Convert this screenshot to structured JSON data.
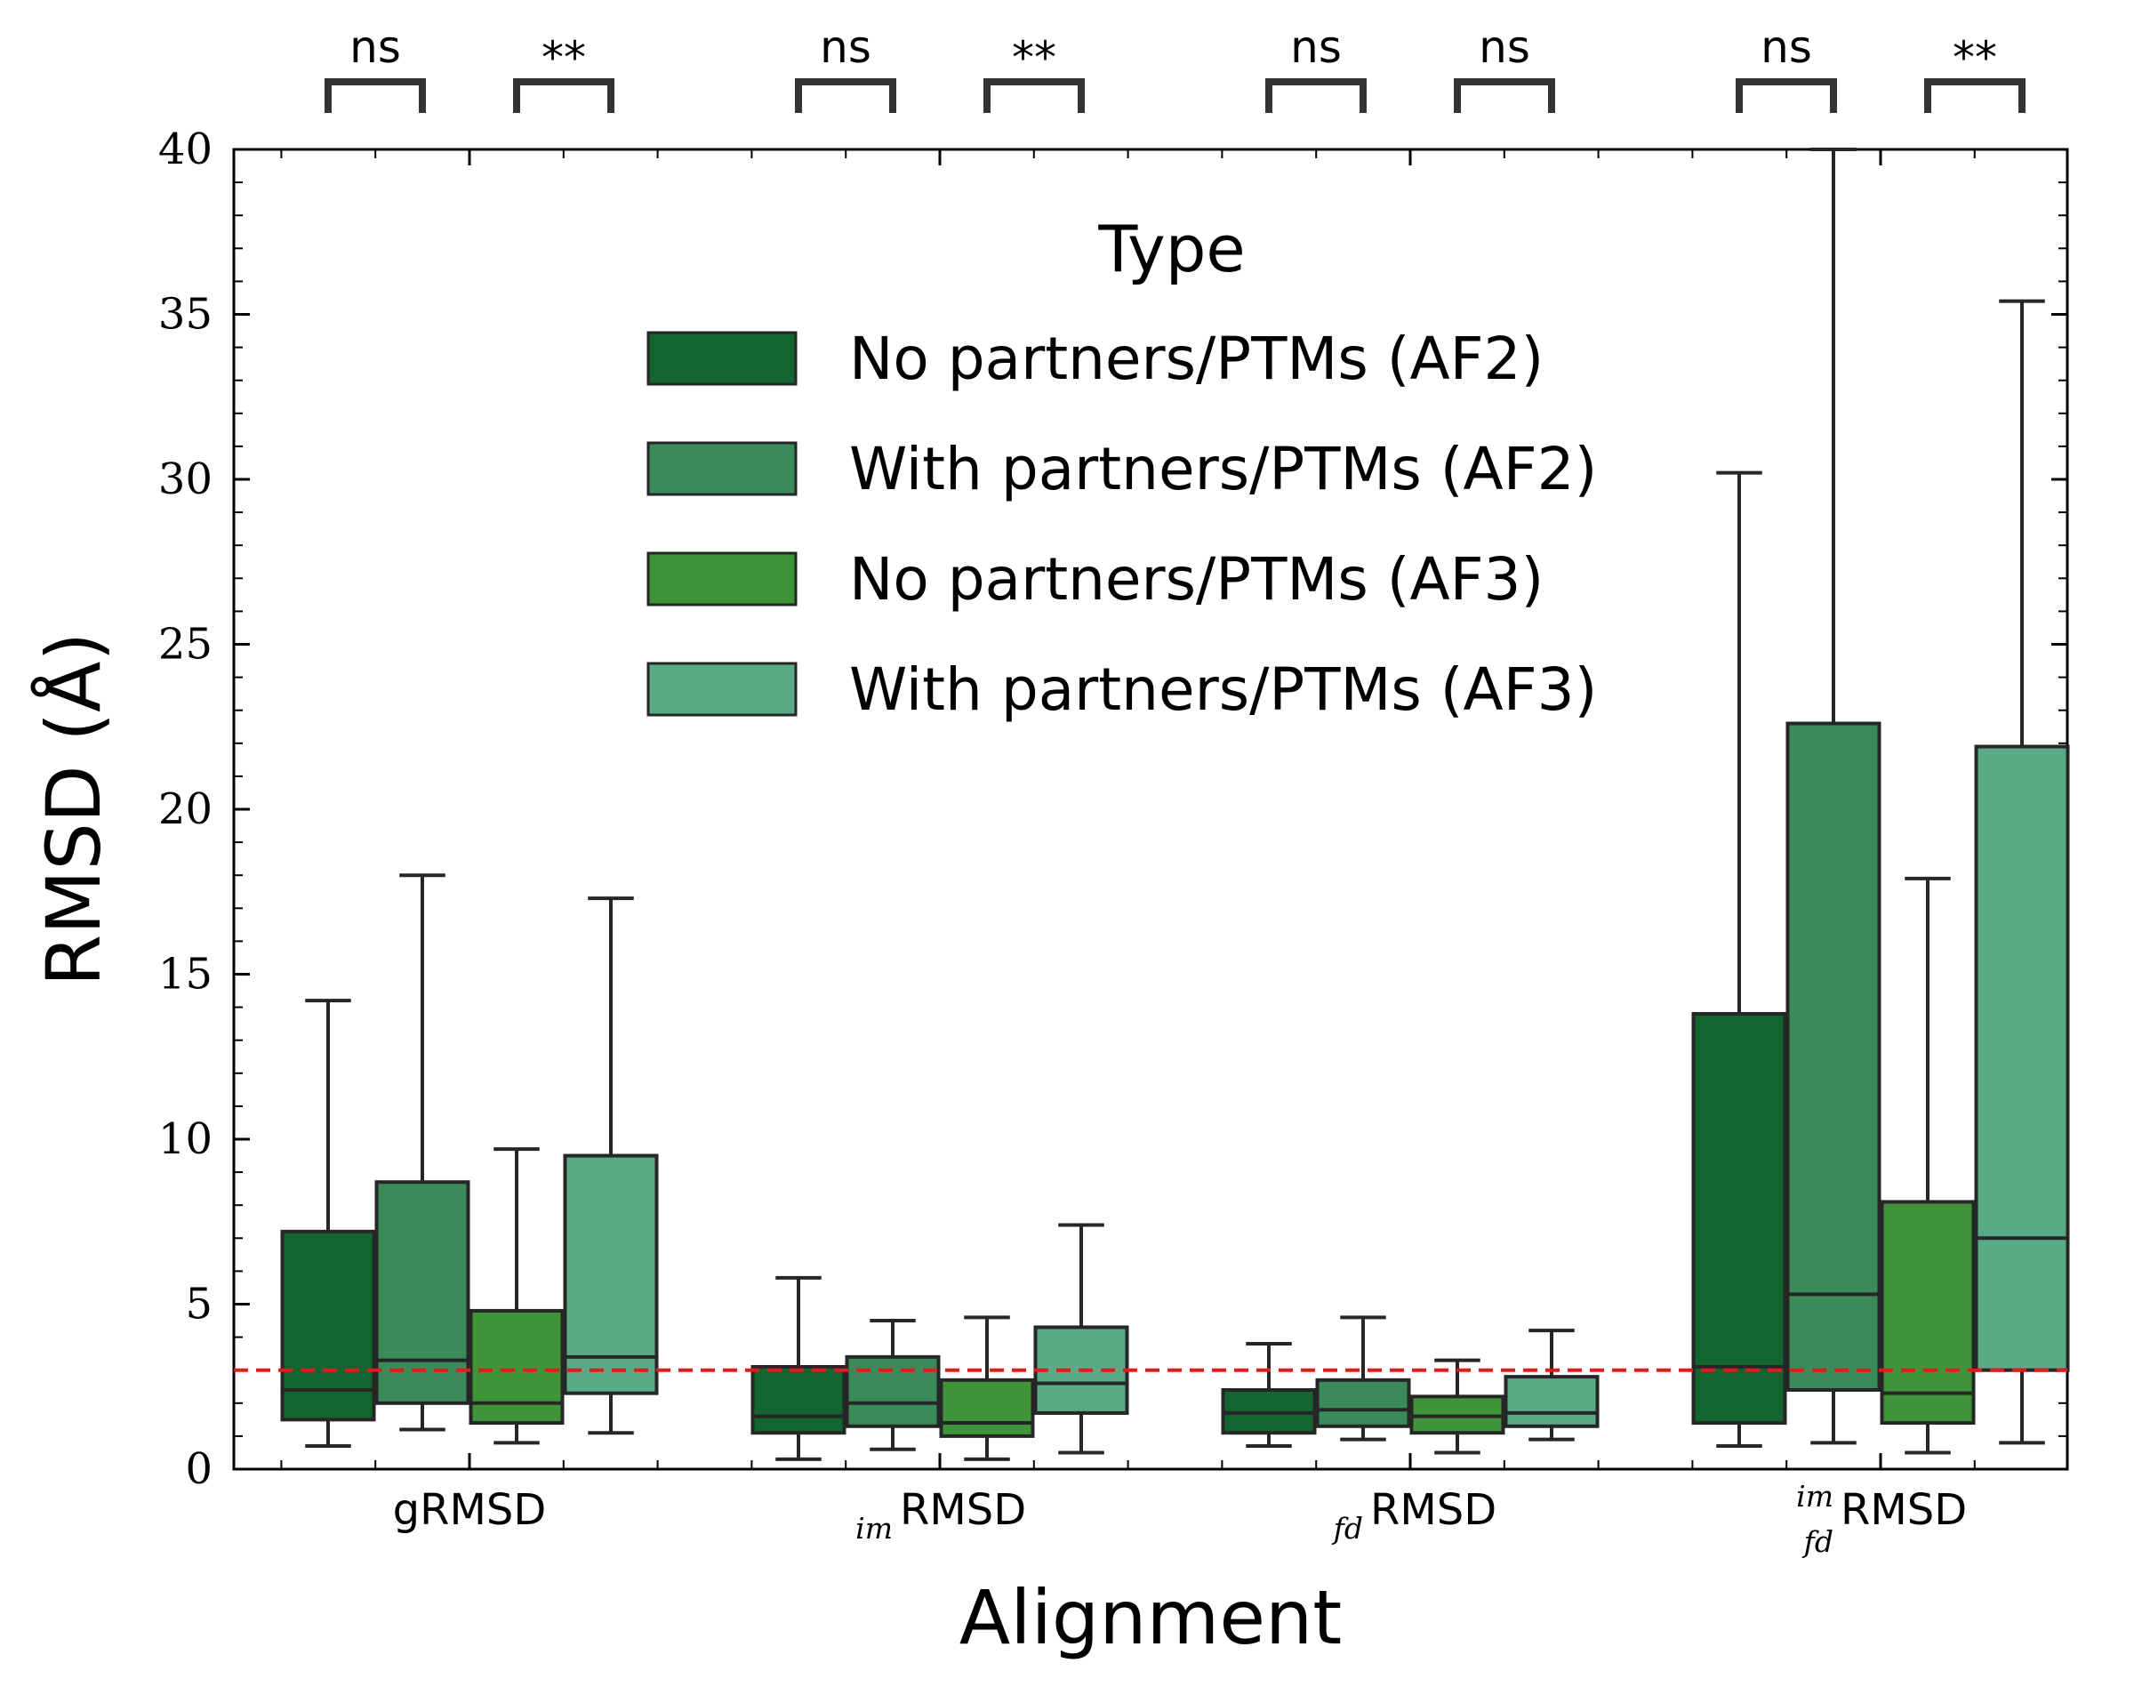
{
  "chart_data": {
    "type": "box",
    "xlabel": "Alignment",
    "ylabel": "RMSD (Å)",
    "ylim": [
      0,
      40
    ],
    "yticks": [
      0,
      5,
      10,
      15,
      20,
      25,
      30,
      35,
      40
    ],
    "threshold": {
      "value": 3,
      "color": "#e41a1c"
    },
    "categories": [
      {
        "main": "gRMSD",
        "sub": "",
        "sup": ""
      },
      {
        "main": "RMSD",
        "sub": "im",
        "sup": ""
      },
      {
        "main": "RMSD",
        "sub": "fd",
        "sup": ""
      },
      {
        "main": "RMSD",
        "sub": "fd",
        "sup": "im"
      }
    ],
    "legend": {
      "title": "Type",
      "placement": "upper-center"
    },
    "series": [
      {
        "name": "No partners/PTMs (AF2)",
        "color": "#12652f",
        "boxes": [
          {
            "whislo": 0.7,
            "q1": 1.5,
            "med": 2.4,
            "q3": 7.2,
            "whishi": 14.2
          },
          {
            "whislo": 0.3,
            "q1": 1.1,
            "med": 1.6,
            "q3": 3.1,
            "whishi": 5.8
          },
          {
            "whislo": 0.7,
            "q1": 1.1,
            "med": 1.7,
            "q3": 2.4,
            "whishi": 3.8
          },
          {
            "whislo": 0.7,
            "q1": 1.4,
            "med": 3.1,
            "q3": 13.8,
            "whishi": 30.2
          }
        ]
      },
      {
        "name": "With partners/PTMs (AF2)",
        "color": "#3a8a5a",
        "boxes": [
          {
            "whislo": 1.2,
            "q1": 2.0,
            "med": 3.3,
            "q3": 8.7,
            "whishi": 18.0
          },
          {
            "whislo": 0.6,
            "q1": 1.3,
            "med": 2.0,
            "q3": 3.4,
            "whishi": 4.5
          },
          {
            "whislo": 0.9,
            "q1": 1.3,
            "med": 1.8,
            "q3": 2.7,
            "whishi": 4.6
          },
          {
            "whislo": 0.8,
            "q1": 2.4,
            "med": 5.3,
            "q3": 22.6,
            "whishi": 40.0
          }
        ]
      },
      {
        "name": "No partners/PTMs (AF3)",
        "color": "#3f943a",
        "boxes": [
          {
            "whislo": 0.8,
            "q1": 1.4,
            "med": 2.0,
            "q3": 4.8,
            "whishi": 9.7
          },
          {
            "whislo": 0.3,
            "q1": 1.0,
            "med": 1.4,
            "q3": 2.7,
            "whishi": 4.6
          },
          {
            "whislo": 0.5,
            "q1": 1.1,
            "med": 1.6,
            "q3": 2.2,
            "whishi": 3.3
          },
          {
            "whislo": 0.5,
            "q1": 1.4,
            "med": 2.3,
            "q3": 8.1,
            "whishi": 17.9
          }
        ]
      },
      {
        "name": "With partners/PTMs (AF3)",
        "color": "#5aaa87",
        "boxes": [
          {
            "whislo": 1.1,
            "q1": 2.3,
            "med": 3.4,
            "q3": 9.5,
            "whishi": 17.3
          },
          {
            "whislo": 0.5,
            "q1": 1.7,
            "med": 2.6,
            "q3": 4.3,
            "whishi": 7.4
          },
          {
            "whislo": 0.9,
            "q1": 1.3,
            "med": 1.7,
            "q3": 2.8,
            "whishi": 4.2
          },
          {
            "whislo": 0.8,
            "q1": 3.0,
            "med": 7.0,
            "q3": 21.9,
            "whishi": 35.4
          }
        ]
      }
    ],
    "significance": [
      {
        "category": 0,
        "pair": [
          0,
          1
        ],
        "label": "ns"
      },
      {
        "category": 0,
        "pair": [
          2,
          3
        ],
        "label": "**"
      },
      {
        "category": 1,
        "pair": [
          0,
          1
        ],
        "label": "ns"
      },
      {
        "category": 1,
        "pair": [
          2,
          3
        ],
        "label": "**"
      },
      {
        "category": 2,
        "pair": [
          0,
          1
        ],
        "label": "ns"
      },
      {
        "category": 2,
        "pair": [
          2,
          3
        ],
        "label": "ns"
      },
      {
        "category": 3,
        "pair": [
          0,
          1
        ],
        "label": "ns"
      },
      {
        "category": 3,
        "pair": [
          2,
          3
        ],
        "label": "**"
      }
    ]
  }
}
